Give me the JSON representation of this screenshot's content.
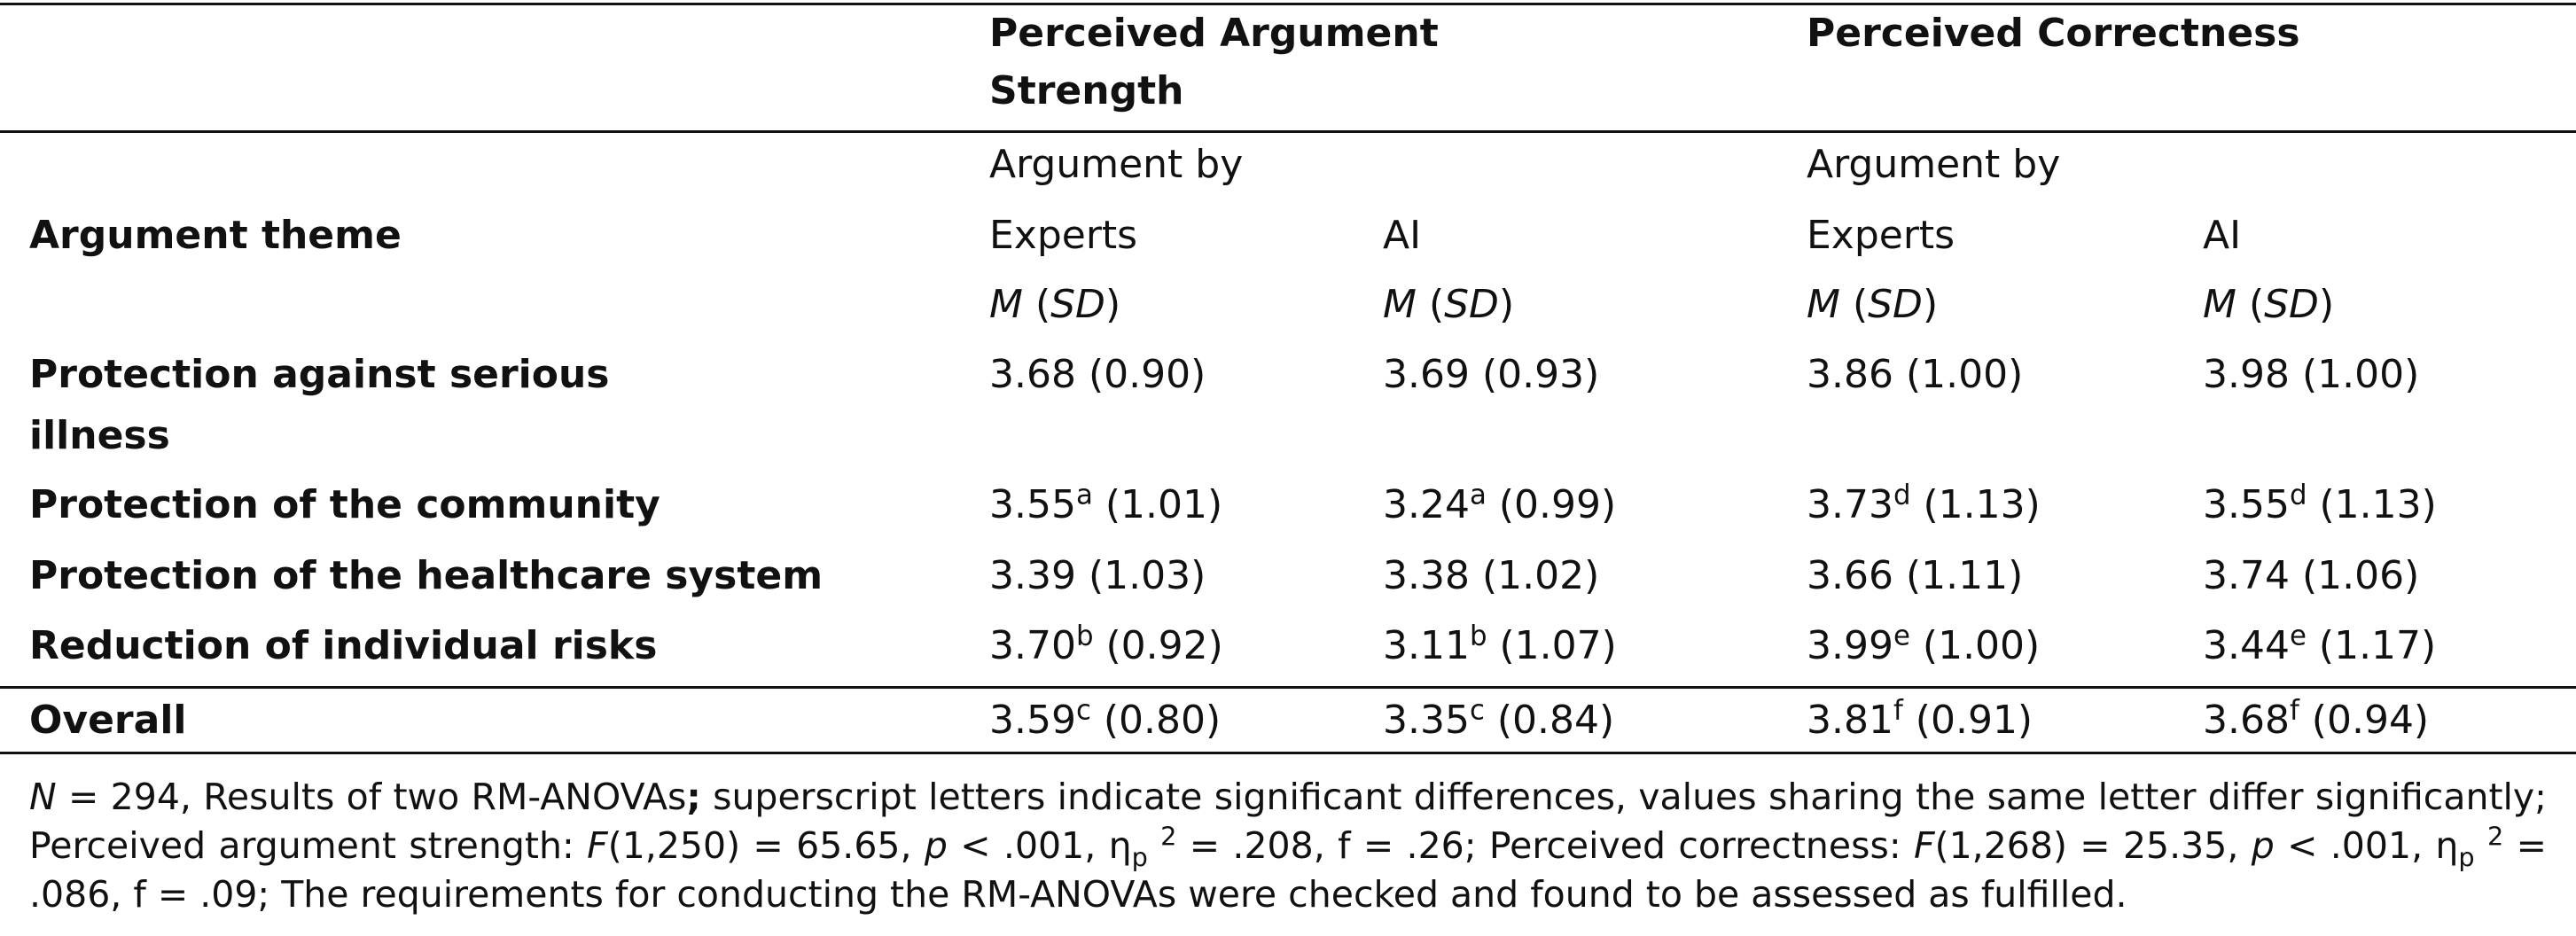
{
  "table": {
    "group_headers": [
      "Perceived Argument Strength",
      "Perceived Correctness"
    ],
    "sub_headers": [
      "Argument by",
      "Argument by"
    ],
    "stub_header": "Argument theme",
    "columns": [
      "Experts",
      "AI",
      "Experts",
      "AI"
    ],
    "stat_headers": [
      [
        {
          "text": "M",
          "style": "italic"
        },
        {
          "text": " ("
        },
        {
          "text": "SD",
          "style": "italic"
        },
        {
          "text": ")"
        }
      ],
      [
        {
          "text": "M",
          "style": "italic"
        },
        {
          "text": " ("
        },
        {
          "text": "SD",
          "style": "italic"
        },
        {
          "text": ")"
        }
      ],
      [
        {
          "text": "M",
          "style": "italic"
        },
        {
          "text": " ("
        },
        {
          "text": "SD",
          "style": "italic"
        },
        {
          "text": ")"
        }
      ],
      [
        {
          "text": "M",
          "style": "italic"
        },
        {
          "text": " ("
        },
        {
          "text": "SD",
          "style": "italic"
        },
        {
          "text": ")"
        }
      ]
    ],
    "rows": [
      {
        "label": "Protection against serious illness",
        "cells": [
          [
            {
              "text": "3.68 (0.90)"
            }
          ],
          [
            {
              "text": "3.69 (0.93)"
            }
          ],
          [
            {
              "text": "3.86 (1.00)"
            }
          ],
          [
            {
              "text": "3.98 (1.00)"
            }
          ]
        ]
      },
      {
        "label": "Protection of the community",
        "cells": [
          [
            {
              "text": "3.55"
            },
            {
              "text": "a",
              "style": "sup"
            },
            {
              "text": " (1.01)"
            }
          ],
          [
            {
              "text": "3.24"
            },
            {
              "text": "a",
              "style": "sup"
            },
            {
              "text": " (0.99)"
            }
          ],
          [
            {
              "text": "3.73"
            },
            {
              "text": "d",
              "style": "sup"
            },
            {
              "text": " (1.13)"
            }
          ],
          [
            {
              "text": "3.55"
            },
            {
              "text": "d",
              "style": "sup"
            },
            {
              "text": " (1.13)"
            }
          ]
        ]
      },
      {
        "label": "Protection of the healthcare system",
        "cells": [
          [
            {
              "text": "3.39 (1.03)"
            }
          ],
          [
            {
              "text": "3.38 (1.02)"
            }
          ],
          [
            {
              "text": "3.66 (1.11)"
            }
          ],
          [
            {
              "text": "3.74 (1.06)"
            }
          ]
        ]
      },
      {
        "label": "Reduction of individual risks",
        "cells": [
          [
            {
              "text": "3.70"
            },
            {
              "text": "b",
              "style": "sup"
            },
            {
              "text": " (0.92)"
            }
          ],
          [
            {
              "text": "3.11"
            },
            {
              "text": "b",
              "style": "sup"
            },
            {
              "text": " (1.07)"
            }
          ],
          [
            {
              "text": "3.99"
            },
            {
              "text": "e",
              "style": "sup"
            },
            {
              "text": " (1.00)"
            }
          ],
          [
            {
              "text": "3.44"
            },
            {
              "text": "e",
              "style": "sup"
            },
            {
              "text": " (1.17)"
            }
          ]
        ]
      },
      {
        "label": "Overall",
        "cells": [
          [
            {
              "text": "3.59"
            },
            {
              "text": "c",
              "style": "sup"
            },
            {
              "text": " (0.80)"
            }
          ],
          [
            {
              "text": "3.35"
            },
            {
              "text": "c",
              "style": "sup"
            },
            {
              "text": " (0.84)"
            }
          ],
          [
            {
              "text": "3.81"
            },
            {
              "text": "f",
              "style": "sup"
            },
            {
              "text": " (0.91)"
            }
          ],
          [
            {
              "text": "3.68"
            },
            {
              "text": "f",
              "style": "sup"
            },
            {
              "text": " (0.94)"
            }
          ]
        ]
      }
    ],
    "note": [
      {
        "text": "N",
        "style": "italic"
      },
      {
        "text": " = 294, Results of two RM-ANOVAs"
      },
      {
        "text": ";",
        "style": "bold"
      },
      {
        "text": " superscript letters indicate significant differences, values sharing the same letter differ significantly; Perceived argument strength: "
      },
      {
        "text": "F",
        "style": "italic"
      },
      {
        "text": "(1,250) = 65.65, "
      },
      {
        "text": "p",
        "style": "italic"
      },
      {
        "text": " < .001, η"
      },
      {
        "text": "p",
        "style": "sub"
      },
      {
        "text": " "
      },
      {
        "text": "2",
        "style": "sup"
      },
      {
        "text": " = .208, f = .26; Perceived correctness: "
      },
      {
        "text": "F",
        "style": "italic"
      },
      {
        "text": "(1,268) = 25.35, "
      },
      {
        "text": "p",
        "style": "italic"
      },
      {
        "text": " < .001, η"
      },
      {
        "text": "p",
        "style": "sub"
      },
      {
        "text": " "
      },
      {
        "text": "2",
        "style": "sup"
      },
      {
        "text": " = .086, f = .09; The requirements for conducting the RM-ANOVAs were checked and found to be assessed as fulfilled."
      }
    ]
  }
}
